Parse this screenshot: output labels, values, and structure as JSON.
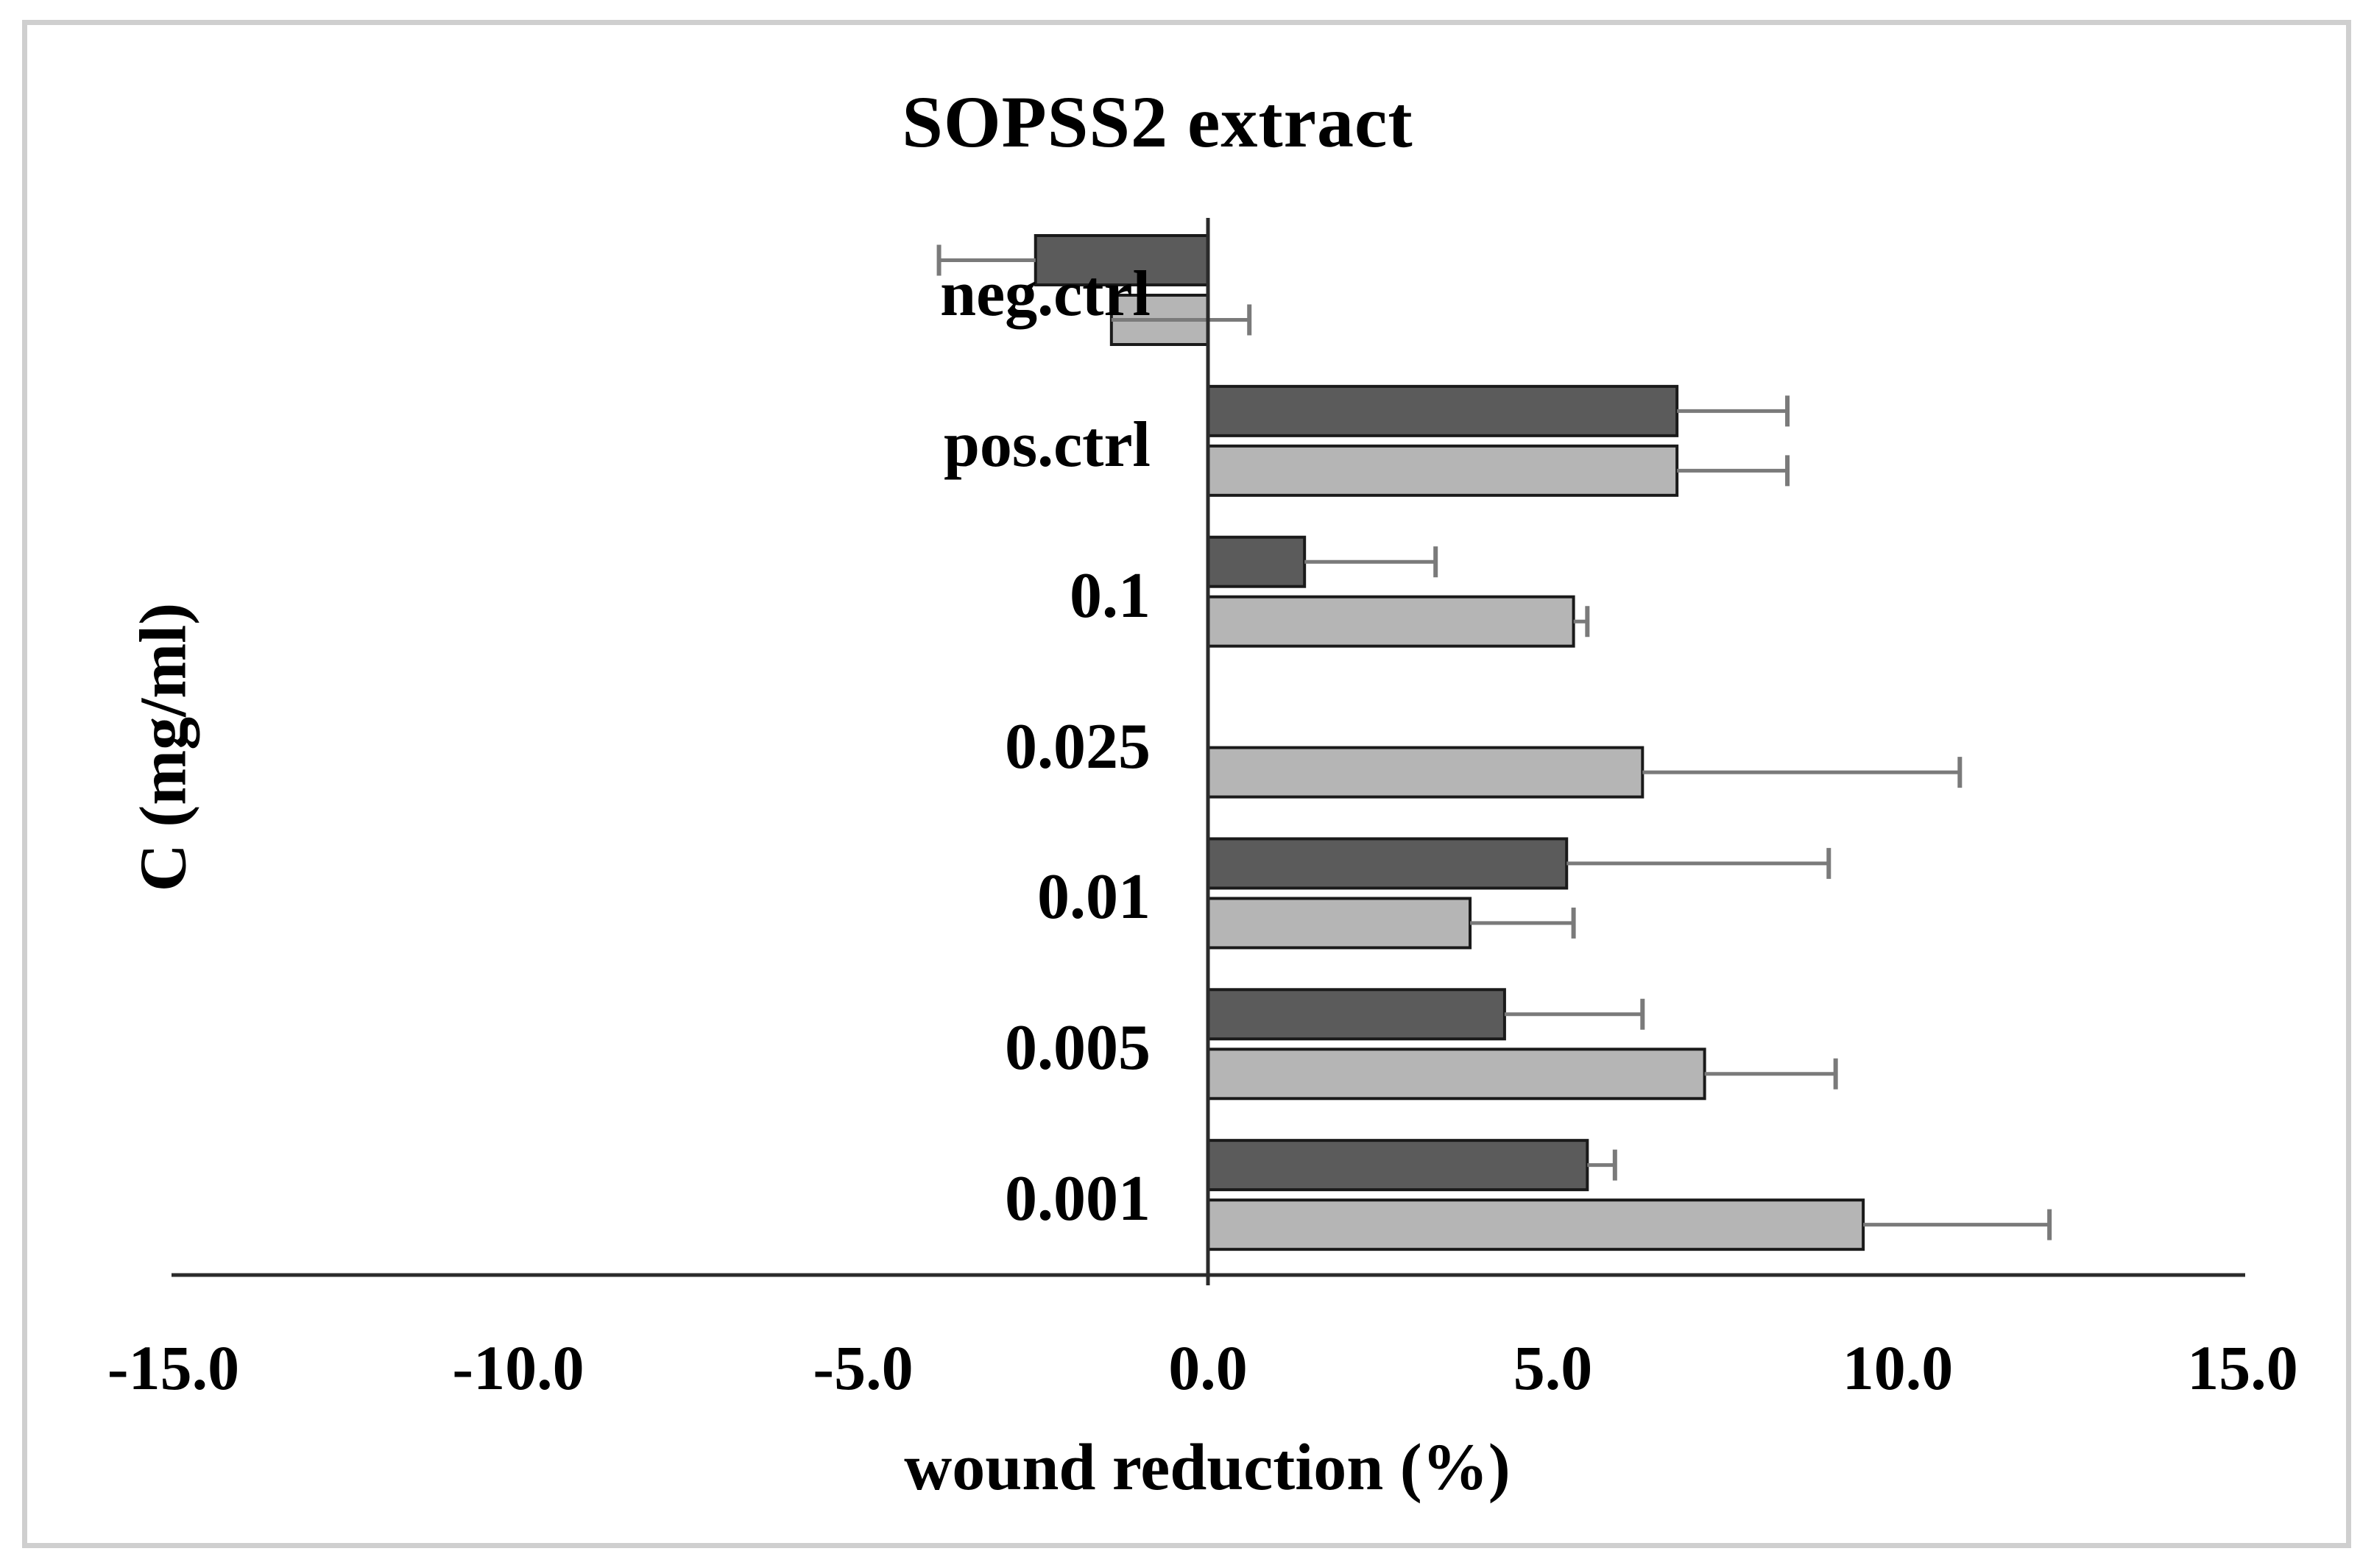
{
  "figure": {
    "background_color": "#ffffff",
    "border_color": "#cfcfcf"
  },
  "chart_data": {
    "type": "bar",
    "orientation": "horizontal",
    "title": "SOPSS2 extract",
    "xlabel": "wound reduction (%)",
    "ylabel": "C (mg/ml)",
    "xlim": [
      -15.0,
      15.0
    ],
    "x_tick_values": [
      -15,
      -10,
      -5,
      0,
      5,
      10,
      15
    ],
    "x_tick_labels": [
      "-15.0",
      "-10.0",
      "-5.0",
      "0.0",
      "5.0",
      "10.0",
      "15.0"
    ],
    "grid": false,
    "legend_position": "none",
    "categories": [
      "neg.ctrl",
      "pos.ctrl",
      "0.1",
      "0.025",
      "0.01",
      "0.005",
      "0.001"
    ],
    "series": [
      {
        "name": "dark-gray-bars",
        "color": "#5b5b5b",
        "border_color": "#1a1a1a",
        "values": [
          -2.5,
          6.8,
          1.4,
          0,
          5.2,
          4.3,
          5.5
        ],
        "error_whisker_ends": [
          -3.9,
          8.4,
          3.3,
          null,
          9.0,
          6.3,
          5.9
        ]
      },
      {
        "name": "light-gray-bars",
        "color": "#b5b5b5",
        "border_color": "#1a1a1a",
        "values": [
          -1.4,
          6.8,
          5.3,
          6.3,
          3.8,
          7.2,
          9.5
        ],
        "error_whisker_ends": [
          0.6,
          8.4,
          5.5,
          10.9,
          5.3,
          9.1,
          12.2
        ]
      }
    ],
    "error_bar_color": "#7a7a7a",
    "axis_color": "#2b2b2b",
    "text_color": "#000000"
  }
}
